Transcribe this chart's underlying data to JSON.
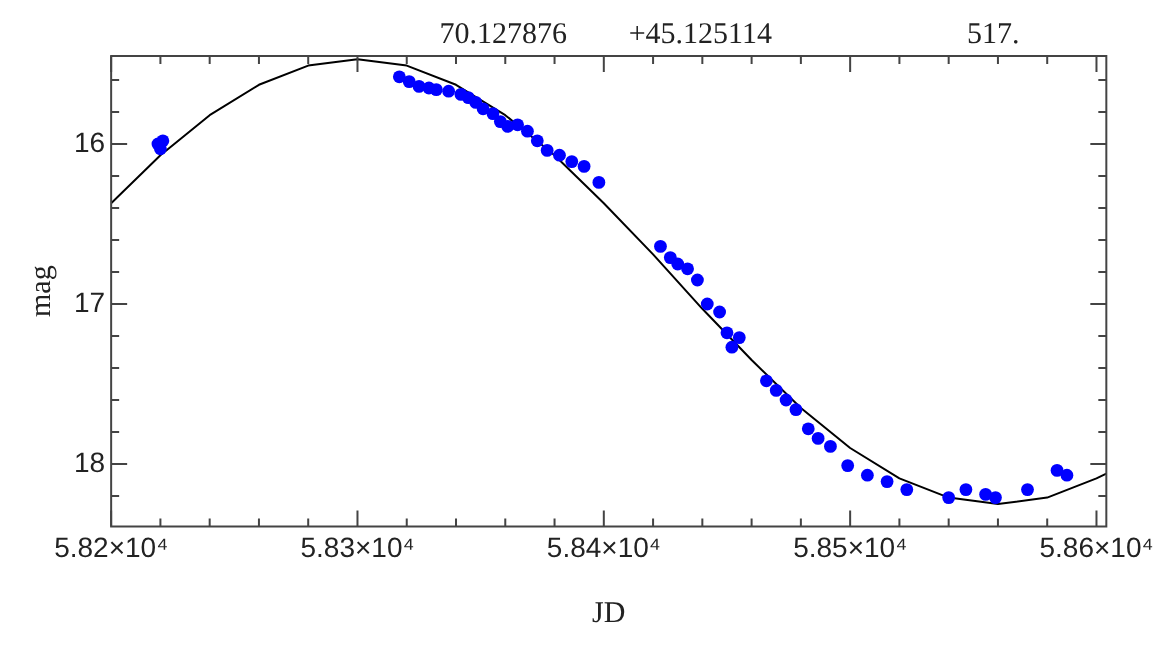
{
  "chart_data": {
    "type": "scatter",
    "xlabel": "JD",
    "ylabel": "mag",
    "annotations": [
      "70.127876",
      "+45.125114",
      "517."
    ],
    "xlim": [
      58200,
      58604
    ],
    "ylim": [
      18.39,
      15.45
    ],
    "xticks": [
      {
        "value": 58200,
        "label": "5.82×10⁴"
      },
      {
        "value": 58220,
        "label": null
      },
      {
        "value": 58240,
        "label": null
      },
      {
        "value": 58260,
        "label": null
      },
      {
        "value": 58280,
        "label": null
      },
      {
        "value": 58300,
        "label": "5.83×10⁴"
      },
      {
        "value": 58320,
        "label": null
      },
      {
        "value": 58340,
        "label": null
      },
      {
        "value": 58360,
        "label": null
      },
      {
        "value": 58380,
        "label": null
      },
      {
        "value": 58400,
        "label": "5.84×10⁴"
      },
      {
        "value": 58420,
        "label": null
      },
      {
        "value": 58440,
        "label": null
      },
      {
        "value": 58460,
        "label": null
      },
      {
        "value": 58480,
        "label": null
      },
      {
        "value": 58500,
        "label": "5.85×10⁴"
      },
      {
        "value": 58520,
        "label": null
      },
      {
        "value": 58540,
        "label": null
      },
      {
        "value": 58560,
        "label": null
      },
      {
        "value": 58580,
        "label": null
      },
      {
        "value": 58600,
        "label": "5.86×10⁴"
      }
    ],
    "yticks": [
      {
        "value": 15.6,
        "label": null
      },
      {
        "value": 15.8,
        "label": null
      },
      16,
      {
        "value": 16.2,
        "label": null
      },
      {
        "value": 16.4,
        "label": null
      },
      {
        "value": 16.6,
        "label": null
      },
      {
        "value": 16.8,
        "label": null
      },
      17,
      {
        "value": 17.2,
        "label": null
      },
      {
        "value": 17.4,
        "label": null
      },
      {
        "value": 17.6,
        "label": null
      },
      {
        "value": 17.8,
        "label": null
      },
      18,
      {
        "value": 18.2,
        "label": null
      }
    ],
    "grid": false,
    "legend": false,
    "series": [
      {
        "color": "#0000ff",
        "marker": "circle",
        "x": [
          58219,
          58221,
          58220,
          58317,
          58321,
          58325,
          58329,
          58332,
          58337,
          58342,
          58345,
          58348,
          58351,
          58355,
          58358,
          58361,
          58365,
          58369,
          58373,
          58377,
          58382,
          58387,
          58392,
          58398,
          58423,
          58427,
          58430,
          58434,
          58438,
          58442,
          58447,
          58450,
          58452,
          58455,
          58466,
          58470,
          58474,
          58478,
          58483,
          58487,
          58492,
          58499,
          58507,
          58515,
          58523,
          58540,
          58547,
          58555,
          58559,
          58572,
          58584,
          58588
        ],
        "values": [
          16.0,
          15.98,
          16.03,
          15.58,
          15.61,
          15.64,
          15.65,
          15.66,
          15.67,
          15.69,
          15.71,
          15.74,
          15.78,
          15.81,
          15.86,
          15.89,
          15.88,
          15.92,
          15.98,
          16.04,
          16.07,
          16.11,
          16.14,
          16.24,
          16.64,
          16.71,
          16.75,
          16.78,
          16.85,
          17.0,
          17.05,
          17.18,
          17.27,
          17.21,
          17.48,
          17.54,
          17.6,
          17.66,
          17.78,
          17.84,
          17.89,
          18.01,
          18.07,
          18.11,
          18.16,
          18.21,
          18.16,
          18.19,
          18.21,
          18.16,
          18.04,
          18.07
        ]
      },
      {
        "type": "line",
        "color": "#000000",
        "marker": "none",
        "line_style": "solid",
        "x": [
          58200,
          58220,
          58240,
          58260,
          58280,
          58300,
          58320,
          58340,
          58360,
          58380,
          58400,
          58420,
          58440,
          58460,
          58480,
          58500,
          58520,
          58540,
          58560,
          58580,
          58600,
          58604
        ],
        "values": [
          16.37,
          16.07,
          15.82,
          15.63,
          15.51,
          15.47,
          15.51,
          15.63,
          15.82,
          16.07,
          16.37,
          16.69,
          17.03,
          17.35,
          17.65,
          17.9,
          18.09,
          18.21,
          18.25,
          18.21,
          18.09,
          18.06
        ]
      }
    ]
  }
}
